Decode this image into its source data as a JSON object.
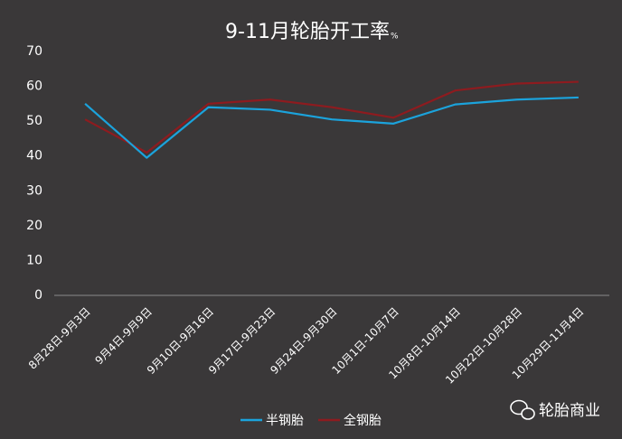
{
  "chart_data": {
    "type": "line",
    "title": "9-11月轮胎开工率",
    "title_unit": "%",
    "categories": [
      "8月28日-9月3日",
      "9月4日-9月9日",
      "9月10日-9月16日",
      "9月17日-9月23日",
      "9月24日-9月30日",
      "10月1日-10月7日",
      "10月8日-10月14日",
      "10月22日-10月28日",
      "10月29日-11月4日"
    ],
    "series": [
      {
        "name": "半钢胎",
        "color": "#1ba3dc",
        "values": [
          55,
          39.5,
          54,
          53.3,
          50.5,
          49.3,
          54.8,
          56.2,
          56.8
        ]
      },
      {
        "name": "全钢胎",
        "color": "#8e1b1f",
        "values": [
          50.5,
          41,
          55,
          56.2,
          54,
          51,
          58.8,
          60.8,
          61.3
        ]
      }
    ],
    "ylim": [
      0,
      70
    ],
    "yticks": [
      0,
      10,
      20,
      30,
      40,
      50,
      60,
      70
    ],
    "grid": false,
    "legend": "bottom",
    "watermark": "轮胎商业"
  }
}
